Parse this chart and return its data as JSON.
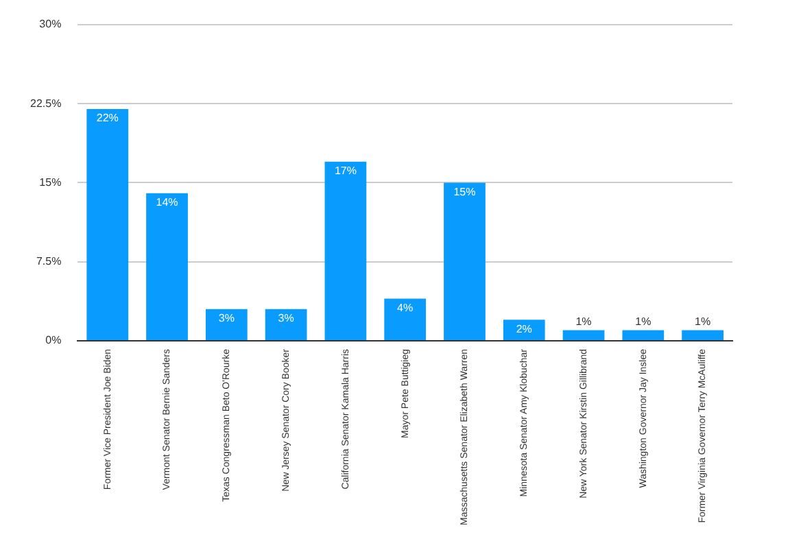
{
  "chart_data": {
    "type": "bar",
    "categories": [
      "Former Vice President Joe Biden",
      "Vermont Senator Bernie Sanders",
      "Texas Congressman Beto O'Rourke",
      "New Jersey Senator Cory Booker",
      "California Senator Kamala Harris",
      "Mayor Pete Buttigieg",
      "Massachusetts Senator Elizabeth Warren",
      "Minnesota Senator Amy Klobuchar",
      "New York Senator Kirstin Gillibrand",
      "Washington Governor Jay Inslee",
      "Former Virginia Governor Terry McAuliffe"
    ],
    "values": [
      22,
      14,
      3,
      3,
      17,
      4,
      15,
      2,
      1,
      1,
      1
    ],
    "color": "#0a9bff",
    "ylim": [
      0,
      30
    ],
    "yticks": [
      {
        "value": 0,
        "label": "0%"
      },
      {
        "value": 7.5,
        "label": "7.5%"
      },
      {
        "value": 15,
        "label": "15%"
      },
      {
        "value": 22.5,
        "label": "22.5%"
      },
      {
        "value": 30,
        "label": "30%"
      }
    ],
    "value_labels": [
      "22%",
      "14%",
      "3%",
      "3%",
      "17%",
      "4%",
      "15%",
      "2%",
      "1%",
      "1%",
      "1%"
    ],
    "grid": "y"
  }
}
